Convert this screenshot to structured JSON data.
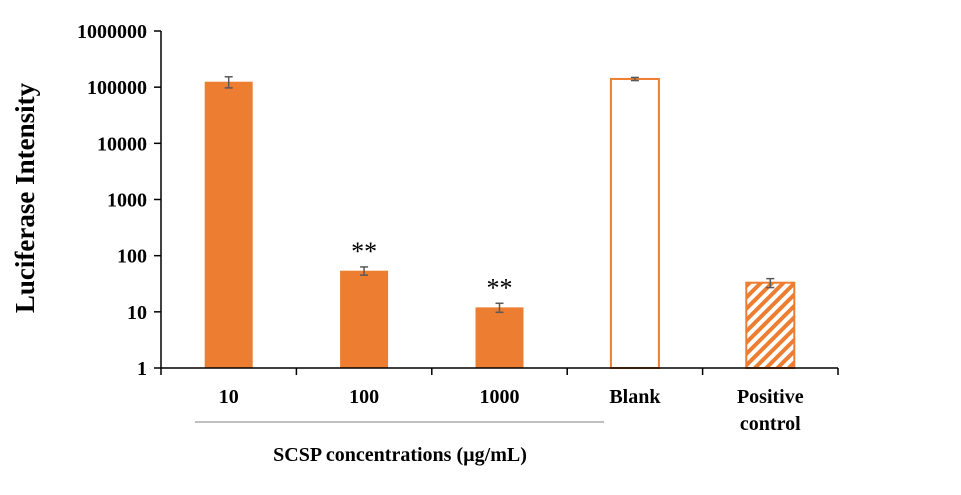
{
  "chart_data": {
    "type": "bar",
    "scale": "log",
    "ylabel": "Luciferase Intensity",
    "ylim": [
      1,
      1000000
    ],
    "yticks": [
      "1",
      "10",
      "100",
      "1000",
      "10000",
      "100000",
      "1000000"
    ],
    "grid": false,
    "categories": [
      {
        "label": [
          "10"
        ],
        "value": 125000,
        "error": 28000,
        "style": "solid",
        "annotation": ""
      },
      {
        "label": [
          "100"
        ],
        "value": 54,
        "error": 9,
        "style": "solid",
        "annotation": "**"
      },
      {
        "label": [
          "1000"
        ],
        "value": 12,
        "error": 2.2,
        "style": "solid",
        "annotation": "**"
      },
      {
        "label": [
          "Blank"
        ],
        "value": 140000,
        "error": 9000,
        "style": "outline",
        "annotation": ""
      },
      {
        "label": [
          "Positive",
          "control"
        ],
        "value": 33,
        "error": 6,
        "style": "hatched",
        "annotation": ""
      }
    ],
    "group_label": "SCSP concentrations (µg/mL)",
    "colors": {
      "bar": "#ED7D31",
      "axis": "#000000",
      "error": "#595959",
      "group_line": "#7F7F7F"
    }
  }
}
